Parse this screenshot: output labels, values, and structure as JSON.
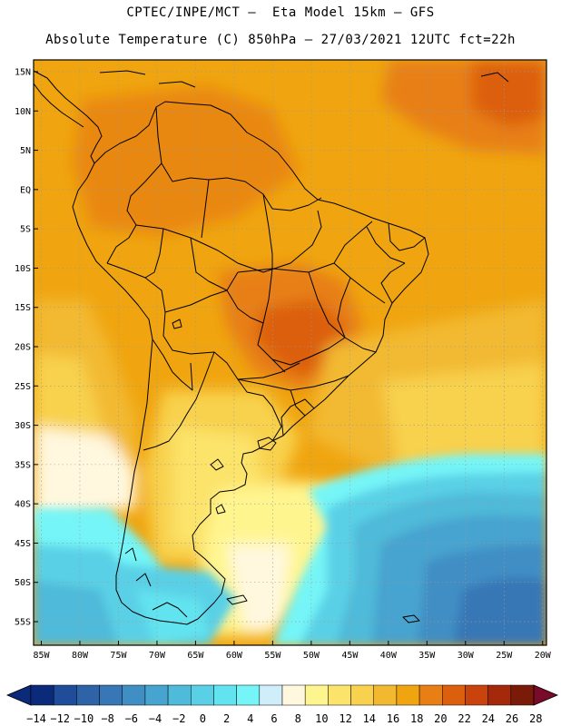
{
  "header": {
    "line1": "CPTEC/INPE/MCT –  Eta Model 15km – GFS",
    "line2": "Absolute Temperature (C) 850hPa – 27/03/2021 12UTC fct=22h"
  },
  "map": {
    "lat_labels": [
      "15N",
      "10N",
      "5N",
      "EQ",
      "5S",
      "10S",
      "15S",
      "20S",
      "25S",
      "30S",
      "35S",
      "40S",
      "45S",
      "50S",
      "55S"
    ],
    "lon_labels": [
      "85W",
      "80W",
      "75W",
      "70W",
      "65W",
      "60W",
      "55W",
      "50W",
      "45W",
      "40W",
      "35W",
      "30W",
      "25W",
      "20W"
    ],
    "lat_range": [
      -58,
      16.5
    ],
    "lon_range": [
      -86,
      -19.5
    ]
  },
  "colorbar": {
    "labels": [
      "-14",
      "-12",
      "-10",
      "-8",
      "-6",
      "-4",
      "-2",
      "0",
      "2",
      "4",
      "6",
      "8",
      "10",
      "12",
      "14",
      "16",
      "18",
      "20",
      "22",
      "24",
      "26",
      "28"
    ],
    "colors": [
      "#0b2a7a",
      "#1f4d99",
      "#2e63a8",
      "#3777b5",
      "#3f8ec4",
      "#47a3cf",
      "#4fbad9",
      "#5ad0e6",
      "#62e3f0",
      "#75f5f7",
      "#cfeefa",
      "#fff8df",
      "#fff58f",
      "#fce36b",
      "#f8d14d",
      "#f2b930",
      "#f0a510",
      "#e77f14",
      "#dc5f0e",
      "#c8440c",
      "#a4290a",
      "#7a1a08"
    ]
  }
}
